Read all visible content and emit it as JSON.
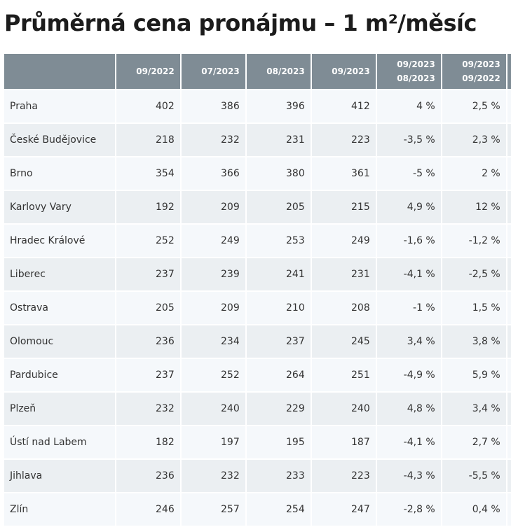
{
  "title": "Průměrná cena pronájmu – 1 m²/měsíc",
  "table": {
    "headers": [
      {
        "line1": "",
        "line2": ""
      },
      {
        "line1": "09/2022",
        "line2": ""
      },
      {
        "line1": "07/2023",
        "line2": ""
      },
      {
        "line1": "08/2023",
        "line2": ""
      },
      {
        "line1": "09/2023",
        "line2": ""
      },
      {
        "line1": "09/2023",
        "line2": "08/2023"
      },
      {
        "line1": "09/2023",
        "line2": "09/2022"
      }
    ],
    "rows": [
      {
        "city": "Praha",
        "v1": "402",
        "v2": "386",
        "v3": "396",
        "v4": "412",
        "c1": "4 %",
        "c2": "2,5 %"
      },
      {
        "city": "České Budějovice",
        "v1": "218",
        "v2": "232",
        "v3": "231",
        "v4": "223",
        "c1": "-3,5 %",
        "c2": "2,3 %"
      },
      {
        "city": "Brno",
        "v1": "354",
        "v2": "366",
        "v3": "380",
        "v4": "361",
        "c1": "-5 %",
        "c2": "2 %"
      },
      {
        "city": "Karlovy Vary",
        "v1": "192",
        "v2": "209",
        "v3": "205",
        "v4": "215",
        "c1": "4,9 %",
        "c2": "12 %"
      },
      {
        "city": "Hradec Králové",
        "v1": "252",
        "v2": "249",
        "v3": "253",
        "v4": "249",
        "c1": "-1,6 %",
        "c2": "-1,2 %"
      },
      {
        "city": "Liberec",
        "v1": "237",
        "v2": "239",
        "v3": "241",
        "v4": "231",
        "c1": "-4,1 %",
        "c2": "-2,5 %"
      },
      {
        "city": "Ostrava",
        "v1": "205",
        "v2": "209",
        "v3": "210",
        "v4": "208",
        "c1": "-1 %",
        "c2": "1,5 %"
      },
      {
        "city": "Olomouc",
        "v1": "236",
        "v2": "234",
        "v3": "237",
        "v4": "245",
        "c1": "3,4 %",
        "c2": "3,8 %"
      },
      {
        "city": "Pardubice",
        "v1": "237",
        "v2": "252",
        "v3": "264",
        "v4": "251",
        "c1": "-4,9 %",
        "c2": "5,9 %"
      },
      {
        "city": "Plzeň",
        "v1": "232",
        "v2": "240",
        "v3": "229",
        "v4": "240",
        "c1": "4,8 %",
        "c2": "3,4 %"
      },
      {
        "city": "Ústí nad Labem",
        "v1": "182",
        "v2": "197",
        "v3": "195",
        "v4": "187",
        "c1": "-4,1 %",
        "c2": "2,7 %"
      },
      {
        "city": "Jihlava",
        "v1": "236",
        "v2": "232",
        "v3": "233",
        "v4": "223",
        "c1": "-4,3 %",
        "c2": "-5,5 %"
      },
      {
        "city": "Zlín",
        "v1": "246",
        "v2": "257",
        "v3": "254",
        "v4": "247",
        "c1": "-2,8 %",
        "c2": "0,4 %"
      }
    ]
  },
  "colors": {
    "header_bg": "#7f8c95",
    "header_text": "#ffffff",
    "row_odd": "#f5f8fb",
    "row_even": "#ebeff2",
    "text": "#333333",
    "title": "#1c1c1c"
  }
}
